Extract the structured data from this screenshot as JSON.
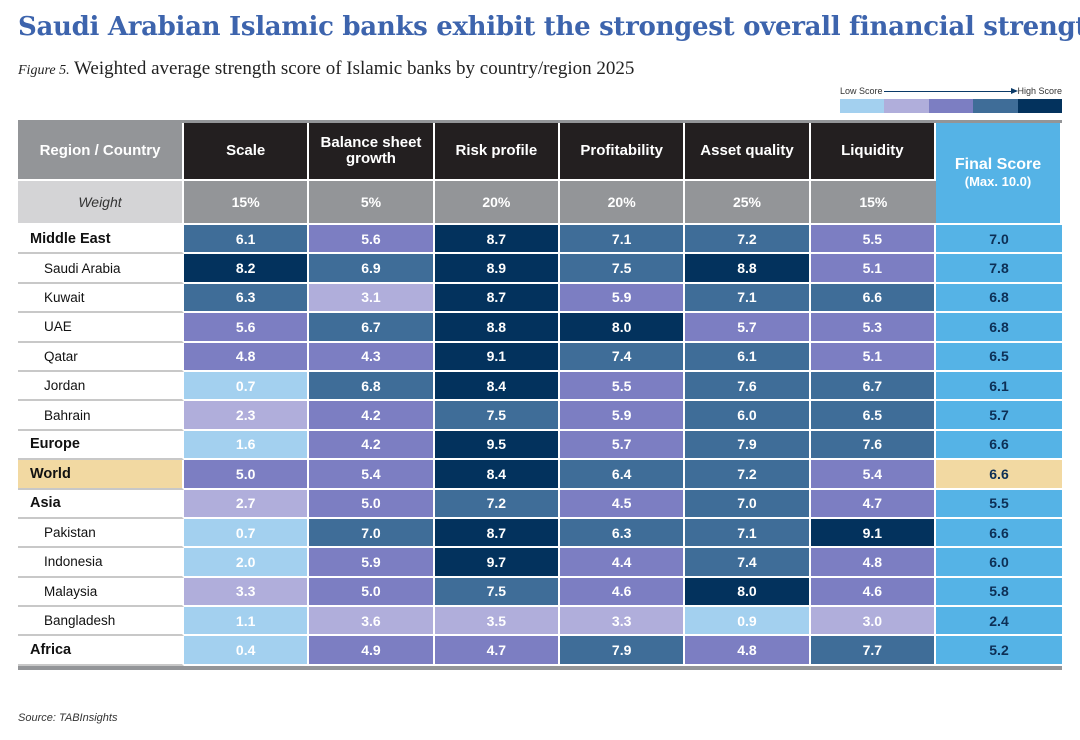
{
  "title": "Saudi Arabian Islamic banks exhibit the strongest overall financial strength",
  "subtitle": {
    "figure": "Figure 5.",
    "text": "Weighted average strength score of Islamic banks by country/region 2025"
  },
  "legend": {
    "low": "Low Score",
    "high": "High Score",
    "colors": [
      "#a3d0ef",
      "#b0aedb",
      "#7c7ec2",
      "#3f6d98",
      "#03325d"
    ]
  },
  "source": "Source: TABInsights",
  "chart_data": {
    "type": "heatmap",
    "title": "Weighted average strength score of Islamic banks by country/region 2025",
    "row_header": "Region / Country",
    "weight_label": "Weight",
    "columns": [
      "Scale",
      "Balance sheet growth",
      "Risk profile",
      "Profitability",
      "Asset quality",
      "Liquidity"
    ],
    "weights": [
      "15%",
      "5%",
      "20%",
      "20%",
      "25%",
      "15%"
    ],
    "final_header": "Final Score",
    "final_sub": "(Max. 10.0)",
    "highlight_color": "#f2d9a2",
    "final_color": "#55b3e6",
    "rows": [
      {
        "name": "Middle East",
        "level": "region",
        "values": [
          "6.1",
          "5.6",
          "8.7",
          "7.1",
          "7.2",
          "5.5"
        ],
        "final": "7.0"
      },
      {
        "name": "Saudi Arabia",
        "level": "country",
        "values": [
          "8.2",
          "6.9",
          "8.9",
          "7.5",
          "8.8",
          "5.1"
        ],
        "final": "7.8"
      },
      {
        "name": "Kuwait",
        "level": "country",
        "values": [
          "6.3",
          "3.1",
          "8.7",
          "5.9",
          "7.1",
          "6.6"
        ],
        "final": "6.8"
      },
      {
        "name": "UAE",
        "level": "country",
        "values": [
          "5.6",
          "6.7",
          "8.8",
          "8.0",
          "5.7",
          "5.3"
        ],
        "final": "6.8"
      },
      {
        "name": "Qatar",
        "level": "country",
        "values": [
          "4.8",
          "4.3",
          "9.1",
          "7.4",
          "6.1",
          "5.1"
        ],
        "final": "6.5"
      },
      {
        "name": "Jordan",
        "level": "country",
        "values": [
          "0.7",
          "6.8",
          "8.4",
          "5.5",
          "7.6",
          "6.7"
        ],
        "final": "6.1"
      },
      {
        "name": "Bahrain",
        "level": "country",
        "values": [
          "2.3",
          "4.2",
          "7.5",
          "5.9",
          "6.0",
          "6.5"
        ],
        "final": "5.7"
      },
      {
        "name": "Europe",
        "level": "region",
        "values": [
          "1.6",
          "4.2",
          "9.5",
          "5.7",
          "7.9",
          "7.6"
        ],
        "final": "6.6"
      },
      {
        "name": "World",
        "level": "world",
        "values": [
          "5.0",
          "5.4",
          "8.4",
          "6.4",
          "7.2",
          "5.4"
        ],
        "final": "6.6"
      },
      {
        "name": "Asia",
        "level": "region",
        "values": [
          "2.7",
          "5.0",
          "7.2",
          "4.5",
          "7.0",
          "4.7"
        ],
        "final": "5.5"
      },
      {
        "name": "Pakistan",
        "level": "country",
        "values": [
          "0.7",
          "7.0",
          "8.7",
          "6.3",
          "7.1",
          "9.1"
        ],
        "final": "6.6"
      },
      {
        "name": "Indonesia",
        "level": "country",
        "values": [
          "2.0",
          "5.9",
          "9.7",
          "4.4",
          "7.4",
          "4.8"
        ],
        "final": "6.0"
      },
      {
        "name": "Malaysia",
        "level": "country",
        "values": [
          "3.3",
          "5.0",
          "7.5",
          "4.6",
          "8.0",
          "4.6"
        ],
        "final": "5.8"
      },
      {
        "name": "Bangladesh",
        "level": "country",
        "values": [
          "1.1",
          "3.6",
          "3.5",
          "3.3",
          "0.9",
          "3.0"
        ],
        "final": "2.4"
      },
      {
        "name": "Africa",
        "level": "region",
        "values": [
          "0.4",
          "4.9",
          "4.7",
          "7.9",
          "4.8",
          "7.7"
        ],
        "final": "5.2"
      }
    ]
  }
}
